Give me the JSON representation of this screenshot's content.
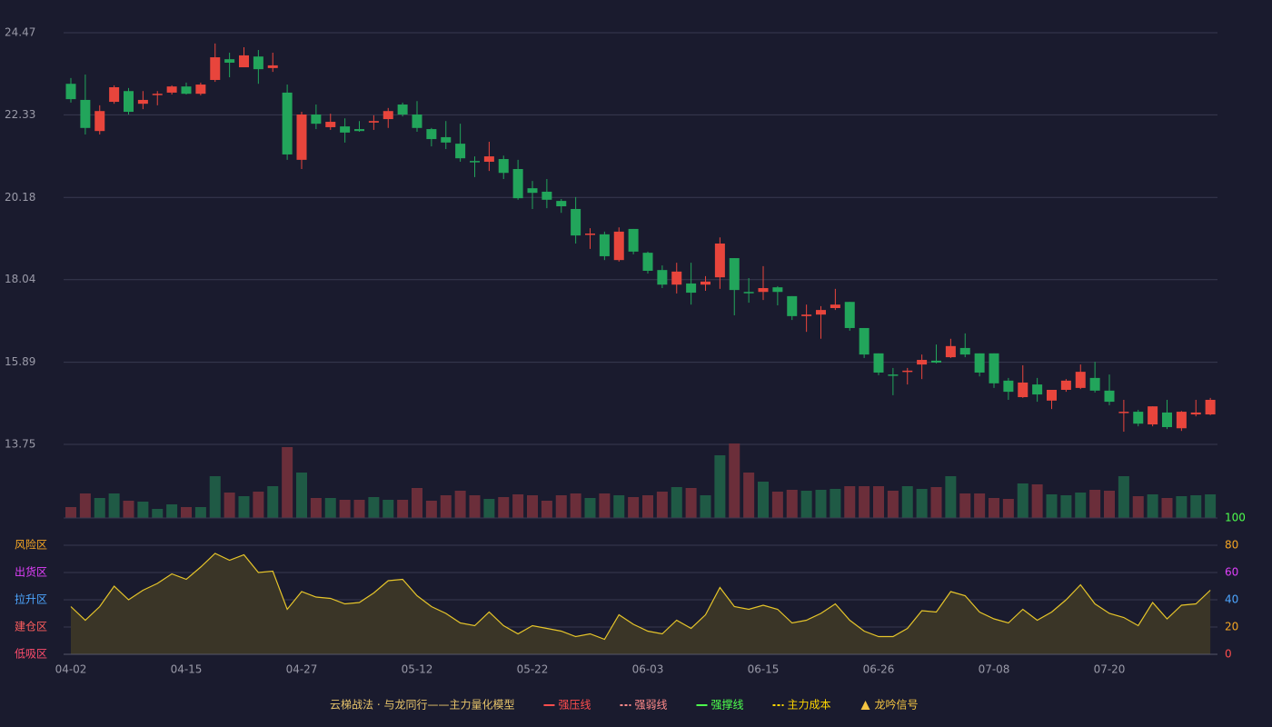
{
  "chart_data": [
    {
      "type": "candlestick",
      "categories": [
        "04-02",
        null,
        null,
        null,
        null,
        null,
        null,
        null,
        "04-15",
        null,
        null,
        null,
        null,
        null,
        null,
        null,
        "04-27",
        null,
        null,
        null,
        null,
        null,
        null,
        null,
        "05-12",
        null,
        null,
        null,
        null,
        null,
        null,
        null,
        "05-22",
        null,
        null,
        null,
        null,
        null,
        null,
        null,
        "06-03",
        null,
        null,
        null,
        null,
        null,
        null,
        null,
        "06-15",
        null,
        null,
        null,
        null,
        null,
        null,
        null,
        "06-26",
        null,
        null,
        null,
        null,
        null,
        null,
        null,
        "07-08",
        null,
        null,
        null,
        null,
        null,
        null,
        null,
        "07-20",
        null,
        null,
        null,
        null,
        null,
        null,
        null
      ],
      "open": [
        23.14,
        22.72,
        21.91,
        22.67,
        22.95,
        22.62,
        22.86,
        22.91,
        23.07,
        22.88,
        23.24,
        23.78,
        23.57,
        23.85,
        23.55,
        22.91,
        21.16,
        22.34,
        22.01,
        22.03,
        21.96,
        22.13,
        22.22,
        22.6,
        22.34,
        21.96,
        21.75,
        21.58,
        21.13,
        21.11,
        21.18,
        20.92,
        20.42,
        20.33,
        20.09,
        19.88,
        19.22,
        19.22,
        18.55,
        19.36,
        18.74,
        18.29,
        17.91,
        17.94,
        17.91,
        18.1,
        18.6,
        17.72,
        17.72,
        17.84,
        17.61,
        17.09,
        17.13,
        17.3,
        17.46,
        16.78,
        16.12,
        15.57,
        15.67,
        15.83,
        15.93,
        16.02,
        16.26,
        16.12,
        16.12,
        15.41,
        14.98,
        15.31,
        14.89,
        15.17,
        15.22,
        15.48,
        15.15,
        14.58,
        14.6,
        14.27,
        14.58,
        14.17,
        14.53,
        14.53
      ],
      "high": [
        23.29,
        23.38,
        22.58,
        23.1,
        23.03,
        22.95,
        22.95,
        23.1,
        23.17,
        23.17,
        24.19,
        23.95,
        24.09,
        24.02,
        23.95,
        23.12,
        22.41,
        22.6,
        22.36,
        22.24,
        22.17,
        22.32,
        22.51,
        22.65,
        22.69,
        21.99,
        22.17,
        22.1,
        21.25,
        21.63,
        21.27,
        21.16,
        20.61,
        20.66,
        20.14,
        20.19,
        19.38,
        19.29,
        19.4,
        19.36,
        18.77,
        18.41,
        18.48,
        18.48,
        18.13,
        19.14,
        18.6,
        18.08,
        18.39,
        17.87,
        17.61,
        17.39,
        17.35,
        17.8,
        17.46,
        16.78,
        16.12,
        15.74,
        15.74,
        16.09,
        16.35,
        16.5,
        16.64,
        16.12,
        16.12,
        15.48,
        15.81,
        15.48,
        15.17,
        15.45,
        15.83,
        15.9,
        15.57,
        14.91,
        14.65,
        14.74,
        14.91,
        14.62,
        14.91,
        14.96
      ],
      "low": [
        22.65,
        21.82,
        21.82,
        22.62,
        22.34,
        22.48,
        22.58,
        22.86,
        22.86,
        22.84,
        23.19,
        23.31,
        23.57,
        23.14,
        23.45,
        21.16,
        20.92,
        21.96,
        21.94,
        21.61,
        21.89,
        21.94,
        21.99,
        22.29,
        21.89,
        21.51,
        21.44,
        21.11,
        20.71,
        20.87,
        20.66,
        20.12,
        19.88,
        19.9,
        19.78,
        18.98,
        18.84,
        18.55,
        18.51,
        18.7,
        18.2,
        17.82,
        17.68,
        17.39,
        17.75,
        17.8,
        17.11,
        17.44,
        17.51,
        17.37,
        16.99,
        16.68,
        16.5,
        17.25,
        16.71,
        16.0,
        15.55,
        15.03,
        15.31,
        15.45,
        15.86,
        16.0,
        16.02,
        15.52,
        15.22,
        14.91,
        14.96,
        14.86,
        14.67,
        15.12,
        15.19,
        15.1,
        14.77,
        14.08,
        14.22,
        14.22,
        14.15,
        14.1,
        14.48,
        14.51
      ],
      "close": [
        22.74,
        21.99,
        22.43,
        23.05,
        22.41,
        22.72,
        22.88,
        23.07,
        22.88,
        23.12,
        23.83,
        23.69,
        23.88,
        23.52,
        23.62,
        21.3,
        22.34,
        22.1,
        22.15,
        21.87,
        21.91,
        22.17,
        22.43,
        22.34,
        21.99,
        21.7,
        21.61,
        21.2,
        21.11,
        21.25,
        20.82,
        20.16,
        20.3,
        20.12,
        19.95,
        19.19,
        19.24,
        18.65,
        19.29,
        18.77,
        18.27,
        17.91,
        18.25,
        17.7,
        17.99,
        18.98,
        17.77,
        17.7,
        17.82,
        17.72,
        17.09,
        17.13,
        17.25,
        17.39,
        16.78,
        16.09,
        15.62,
        15.55,
        15.67,
        15.95,
        15.88,
        16.31,
        16.09,
        15.62,
        15.34,
        15.12,
        15.36,
        15.05,
        15.17,
        15.41,
        15.64,
        15.15,
        14.86,
        14.6,
        14.29,
        14.74,
        14.2,
        14.6,
        14.58,
        14.91
      ],
      "up_color": "#e8453c",
      "down_color": "#22a55b",
      "volume": {
        "values": [
          12,
          27,
          22,
          27,
          19,
          18,
          10,
          15,
          12,
          12,
          46,
          28,
          24,
          29,
          35,
          78,
          50,
          22,
          22,
          20,
          20,
          23,
          20,
          20,
          33,
          19,
          25,
          30,
          25,
          21,
          23,
          26,
          25,
          19,
          25,
          27,
          22,
          27,
          25,
          23,
          25,
          29,
          34,
          33,
          25,
          69,
          82,
          50,
          40,
          29,
          31,
          30,
          31,
          32,
          35,
          35,
          35,
          30,
          35,
          32,
          34,
          46,
          27,
          27,
          22,
          21,
          38,
          37,
          26,
          25,
          28,
          31,
          30,
          46,
          24,
          26,
          22,
          24,
          25,
          26
        ],
        "up_color": "#1f5a45",
        "down_color": "#6b2e3a"
      },
      "ylim": [
        13.75,
        24.47
      ],
      "yticks": [
        13.75,
        15.89,
        18.04,
        20.18,
        22.33,
        24.47
      ],
      "grid": true
    },
    {
      "type": "area",
      "values": [
        35,
        25,
        35,
        50,
        40,
        47,
        52,
        59,
        55,
        64,
        74,
        69,
        73,
        60,
        61,
        33,
        46,
        42,
        41,
        37,
        38,
        45,
        54,
        55,
        43,
        35,
        30,
        23,
        21,
        31,
        21,
        15,
        21,
        19,
        17,
        13,
        15,
        11,
        29,
        22,
        17,
        15,
        25,
        19,
        29,
        49,
        35,
        33,
        36,
        33,
        23,
        25,
        30,
        37,
        25,
        17,
        13,
        13,
        19,
        32,
        31,
        46,
        43,
        31,
        26,
        23,
        33,
        25,
        31,
        40,
        51,
        37,
        30,
        27,
        21,
        38,
        26,
        36,
        37,
        47
      ],
      "color": "#e6c52a",
      "fill_color": "#3a3527",
      "ylim": [
        0,
        100
      ],
      "yticks": [
        0,
        20,
        40,
        60,
        80,
        100
      ],
      "ytick_colors": [
        "#ff4d4d",
        "#f5a623",
        "#4da6ff",
        "#e040fb",
        "#f5a623",
        "#4dff4d"
      ],
      "zones": [
        {
          "value": 80,
          "label": "风险区",
          "color": "#f5a623"
        },
        {
          "value": 60,
          "label": "出货区",
          "color": "#e040fb"
        },
        {
          "value": 40,
          "label": "拉升区",
          "color": "#4da6ff"
        },
        {
          "value": 20,
          "label": "建仓区",
          "color": "#ff5e5e"
        },
        {
          "value": 0,
          "label": "低吸区",
          "color": "#ff4d6d"
        }
      ],
      "grid": true,
      "legend": {
        "title": "云梯战法 · 与龙同行——主力量化模型",
        "title_color": "#e8c46a",
        "items": [
          {
            "name": "强压线",
            "color": "#ff4d4d",
            "symbol": "line"
          },
          {
            "name": "强弱线",
            "color": "#ff8a8a",
            "symbol": "dash"
          },
          {
            "name": "强撑线",
            "color": "#4dff4d",
            "symbol": "line"
          },
          {
            "name": "主力成本",
            "color": "#ffd700",
            "symbol": "dash"
          },
          {
            "name": "龙吟信号",
            "color": "#f5c542",
            "symbol": "triangle"
          }
        ]
      }
    }
  ]
}
